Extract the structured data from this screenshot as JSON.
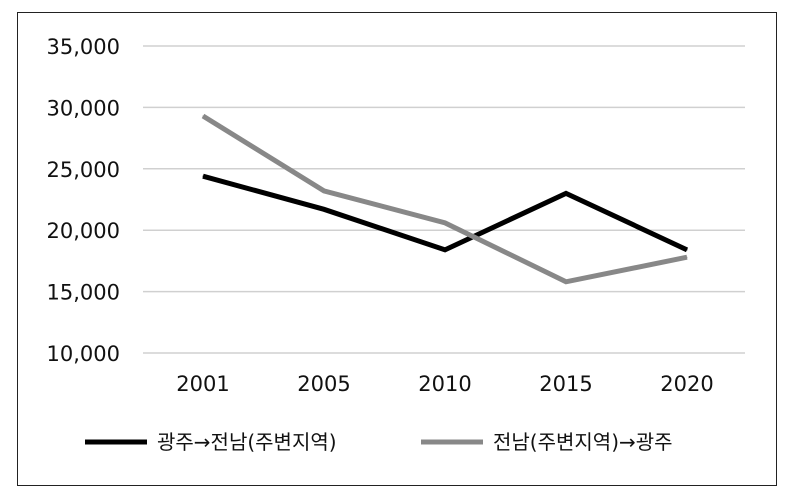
{
  "chart_data": {
    "type": "line",
    "title": "",
    "xlabel": "",
    "ylabel": "",
    "categories": [
      "2001",
      "2005",
      "2010",
      "2015",
      "2020"
    ],
    "ylim": [
      10000,
      35000
    ],
    "yticks": [
      10000,
      15000,
      20000,
      25000,
      30000,
      35000
    ],
    "ytick_labels": [
      "10,000",
      "15,000",
      "20,000",
      "25,000",
      "30,000",
      "35,000"
    ],
    "grid": true,
    "legend_position": "bottom",
    "series": [
      {
        "name": "광주→전남(주변지역)",
        "values": [
          24400,
          21700,
          18400,
          23000,
          18400
        ],
        "color": "#000000"
      },
      {
        "name": "전남(주변지역)→광주",
        "values": [
          29300,
          23200,
          20600,
          15800,
          17800
        ],
        "color": "#888888"
      }
    ]
  }
}
